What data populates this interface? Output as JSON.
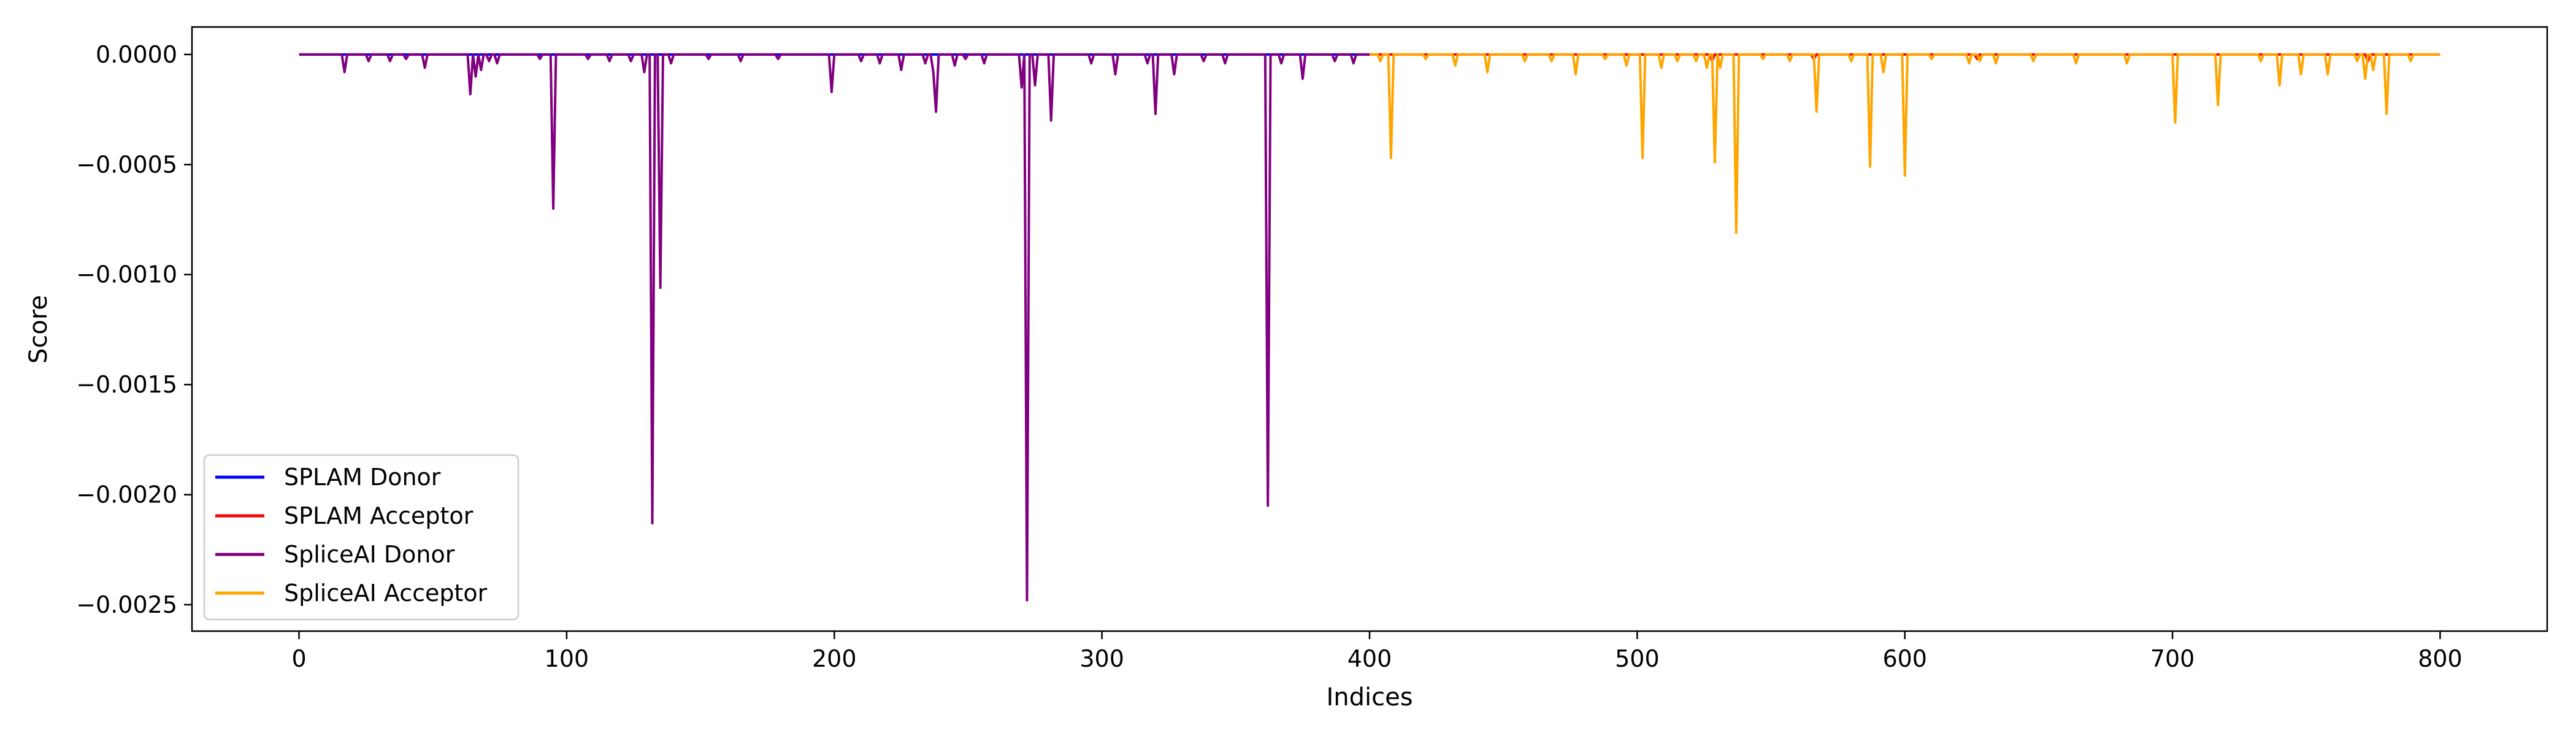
{
  "chart_data": {
    "type": "line",
    "title": "",
    "xlabel": "Indices",
    "ylabel": "Score",
    "xlim": [
      -40,
      840
    ],
    "ylim": [
      -0.00262,
      0.000125
    ],
    "x_ticks": [
      0,
      100,
      200,
      300,
      400,
      500,
      600,
      700,
      800
    ],
    "x_tick_labels": [
      "0",
      "100",
      "200",
      "300",
      "400",
      "500",
      "600",
      "700",
      "800"
    ],
    "y_ticks": [
      0.0,
      -0.0005,
      -0.001,
      -0.0015,
      -0.002,
      -0.0025
    ],
    "y_tick_labels": [
      "0.0000",
      "−0.0005",
      "−0.0010",
      "−0.0015",
      "−0.0020",
      "−0.0025"
    ],
    "grid": false,
    "legend_position": "lower-left",
    "series": [
      {
        "name": "SPLAM Donor",
        "color": "#0000ff",
        "x_range": [
          0,
          400
        ],
        "baseline": 0.0,
        "spikes": []
      },
      {
        "name": "SPLAM Acceptor",
        "color": "#ff0000",
        "x_range": [
          400,
          800
        ],
        "baseline": 0.0,
        "spikes": [
          [
            528,
            -3e-05
          ],
          [
            566,
            -2e-05
          ],
          [
            627,
            -2e-05
          ],
          [
            773,
            -3e-05
          ]
        ]
      },
      {
        "name": "SpliceAI Donor",
        "color": "#800080",
        "x_range": [
          0,
          400
        ],
        "baseline": 0.0,
        "spikes": [
          [
            17,
            -8e-05
          ],
          [
            26,
            -3e-05
          ],
          [
            34,
            -3e-05
          ],
          [
            40,
            -2e-05
          ],
          [
            47,
            -6e-05
          ],
          [
            64,
            -0.00018
          ],
          [
            66,
            -0.0001
          ],
          [
            68,
            -7e-05
          ],
          [
            71,
            -3e-05
          ],
          [
            74,
            -4e-05
          ],
          [
            90,
            -2e-05
          ],
          [
            95,
            -0.0007
          ],
          [
            108,
            -2e-05
          ],
          [
            116,
            -3e-05
          ],
          [
            124,
            -3e-05
          ],
          [
            129,
            -8e-05
          ],
          [
            132,
            -0.00213
          ],
          [
            135,
            -0.00106
          ],
          [
            139,
            -4e-05
          ],
          [
            153,
            -2e-05
          ],
          [
            165,
            -3e-05
          ],
          [
            179,
            -2e-05
          ],
          [
            199,
            -0.00017
          ],
          [
            210,
            -3e-05
          ],
          [
            217,
            -4e-05
          ],
          [
            225,
            -7e-05
          ],
          [
            234,
            -4e-05
          ],
          [
            237,
            -8e-05
          ],
          [
            238,
            -0.00026
          ],
          [
            245,
            -5e-05
          ],
          [
            249,
            -2e-05
          ],
          [
            256,
            -4e-05
          ],
          [
            270,
            -0.00015
          ],
          [
            272,
            -0.00248
          ],
          [
            275,
            -0.00014
          ],
          [
            281,
            -0.0003
          ],
          [
            296,
            -4e-05
          ],
          [
            305,
            -9e-05
          ],
          [
            317,
            -4e-05
          ],
          [
            320,
            -0.00027
          ],
          [
            327,
            -9e-05
          ],
          [
            338,
            -3e-05
          ],
          [
            346,
            -4e-05
          ],
          [
            362,
            -0.00205
          ],
          [
            367,
            -4e-05
          ],
          [
            375,
            -0.00011
          ],
          [
            387,
            -3e-05
          ],
          [
            394,
            -4e-05
          ]
        ]
      },
      {
        "name": "SpliceAI Acceptor",
        "color": "#ffa500",
        "x_range": [
          400,
          800
        ],
        "baseline": 0.0,
        "spikes": [
          [
            404,
            -3e-05
          ],
          [
            408,
            -0.00047
          ],
          [
            421,
            -2e-05
          ],
          [
            432,
            -5e-05
          ],
          [
            444,
            -8e-05
          ],
          [
            458,
            -3e-05
          ],
          [
            468,
            -3e-05
          ],
          [
            477,
            -9e-05
          ],
          [
            488,
            -2e-05
          ],
          [
            496,
            -5e-05
          ],
          [
            502,
            -0.00047
          ],
          [
            509,
            -6e-05
          ],
          [
            515,
            -3e-05
          ],
          [
            522,
            -3e-05
          ],
          [
            526,
            -6e-05
          ],
          [
            529,
            -0.00049
          ],
          [
            531,
            -6e-05
          ],
          [
            537,
            -0.00081
          ],
          [
            547,
            -2e-05
          ],
          [
            557,
            -3e-05
          ],
          [
            567,
            -0.00026
          ],
          [
            580,
            -3e-05
          ],
          [
            587,
            -0.00051
          ],
          [
            592,
            -8e-05
          ],
          [
            600,
            -0.00055
          ],
          [
            610,
            -2e-05
          ],
          [
            624,
            -4e-05
          ],
          [
            628,
            -3e-05
          ],
          [
            634,
            -4e-05
          ],
          [
            648,
            -3e-05
          ],
          [
            664,
            -4e-05
          ],
          [
            683,
            -4e-05
          ],
          [
            701,
            -0.00031
          ],
          [
            717,
            -0.00023
          ],
          [
            733,
            -3e-05
          ],
          [
            740,
            -0.00014
          ],
          [
            748,
            -9e-05
          ],
          [
            758,
            -9e-05
          ],
          [
            769,
            -3e-05
          ],
          [
            772,
            -0.00011
          ],
          [
            775,
            -7e-05
          ],
          [
            780,
            -0.00027
          ],
          [
            789,
            -3e-05
          ]
        ]
      }
    ]
  }
}
